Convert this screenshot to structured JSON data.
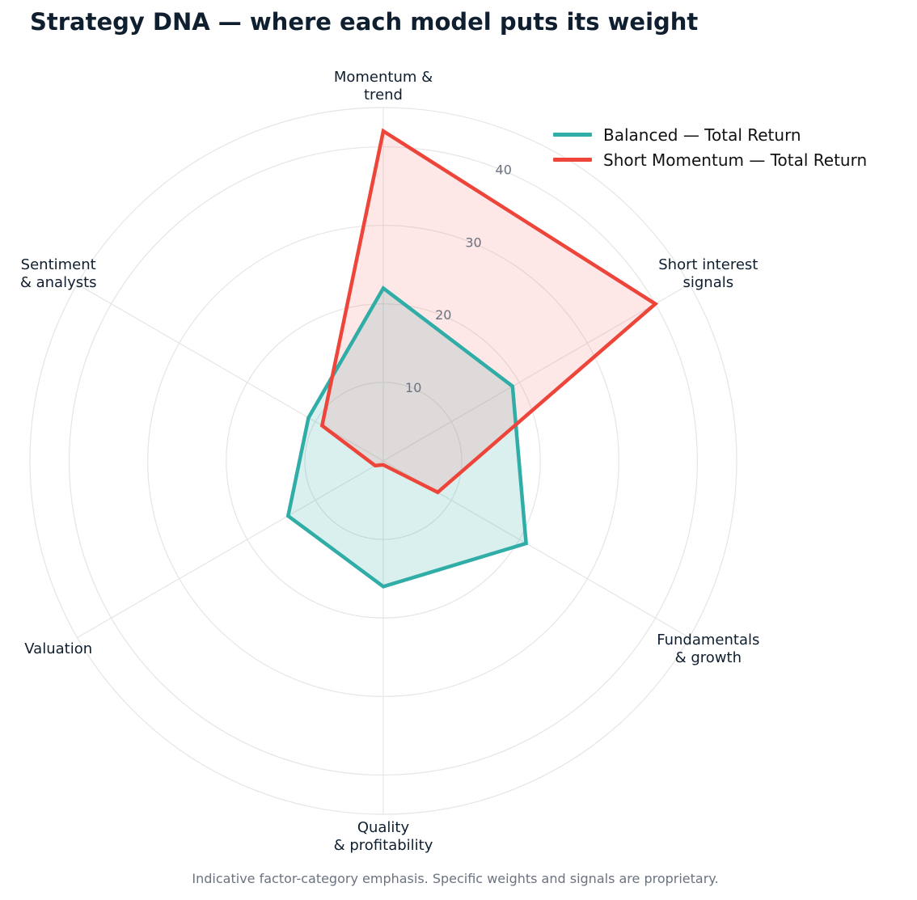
{
  "chart_data": {
    "type": "radar",
    "title": "Strategy DNA — where each model puts its weight",
    "axes": [
      [
        "Momentum &",
        "trend"
      ],
      [
        "Short interest",
        "signals"
      ],
      [
        "Fundamentals",
        "& growth"
      ],
      [
        "Quality",
        "& profitability"
      ],
      [
        "Valuation"
      ],
      [
        "Sentiment",
        "& analysts"
      ]
    ],
    "r_ticks": [
      10,
      20,
      30,
      40
    ],
    "r_tick_labels": [
      "10",
      "20",
      "30",
      "40"
    ],
    "r_max": 45,
    "series": [
      {
        "name": "Balanced — Total Return",
        "color": "#2fada6",
        "fill": "#2fada6",
        "values": [
          22,
          19,
          21,
          16,
          14,
          11
        ]
      },
      {
        "name": "Short Momentum — Total Return",
        "color": "#ee453a",
        "fill": "#f37b7b",
        "values": [
          42,
          40,
          8,
          0.5,
          1.2,
          9
        ]
      }
    ],
    "legend_position": "top-right",
    "grid": true,
    "footnote": "Indicative factor-category emphasis. Specific weights and signals are proprietary."
  }
}
